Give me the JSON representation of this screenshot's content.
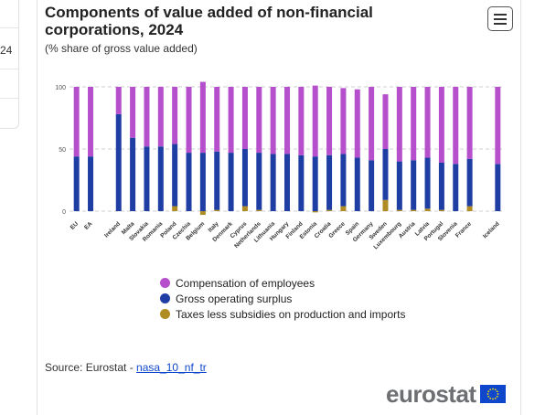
{
  "side_panel": {
    "value": "24"
  },
  "header": {
    "title": "Components of value added of non-financial corporations, 2024",
    "subtitle": "(% share of gross value added)"
  },
  "colors": {
    "compensation": "#b64fcb",
    "surplus": "#1f3ea4",
    "taxes": "#b08d24",
    "grid": "#cfcfcf"
  },
  "legend": {
    "items": [
      {
        "label": "Compensation of employees",
        "color": "#b64fcb"
      },
      {
        "label": "Gross operating surplus",
        "color": "#1f3ea4"
      },
      {
        "label": "Taxes less subsidies on production and imports",
        "color": "#b08d24"
      }
    ]
  },
  "source": {
    "label": "Source: Eurostat - ",
    "dataset": "nasa_10_nf_tr"
  },
  "logo": {
    "text": "eurostat"
  },
  "chart_data": {
    "type": "bar",
    "stacked": true,
    "categories": [
      "EU",
      "EA",
      "",
      "Ireland",
      "Malta",
      "Slovakia",
      "Romania",
      "Poland",
      "Czechia",
      "Belgium",
      "Italy",
      "Denmark",
      "Cyprus",
      "Netherlands",
      "Lithuania",
      "Hungary",
      "Finland",
      "Estonia",
      "Croatia",
      "Greece",
      "Spain",
      "Germany",
      "Sweden",
      "Luxembourg",
      "Austria",
      "Latvia",
      "Portugal",
      "Slovenia",
      "France",
      "",
      "Iceland"
    ],
    "series": [
      {
        "name": "Compensation of employees",
        "values": [
          56,
          56,
          null,
          22,
          41,
          48,
          48,
          46,
          53,
          57,
          52,
          53,
          50,
          53,
          54,
          54,
          55,
          57,
          55,
          53,
          55,
          59,
          44,
          60,
          59,
          57,
          61,
          62,
          58,
          null,
          62
        ]
      },
      {
        "name": "Gross operating surplus",
        "values": [
          44,
          44,
          null,
          78,
          59,
          52,
          52,
          50,
          47,
          47,
          47,
          47,
          46,
          46,
          46,
          46,
          45,
          44,
          44,
          42,
          43,
          41,
          41,
          39,
          40,
          41,
          38,
          38,
          38,
          null,
          38
        ]
      },
      {
        "name": "Taxes less subsidies on production and imports",
        "values": [
          0,
          0,
          null,
          0,
          0,
          0,
          0,
          4,
          0,
          -3,
          1,
          0,
          4,
          1,
          0,
          0,
          0,
          -1,
          1,
          4,
          0,
          0,
          9,
          1,
          1,
          2,
          1,
          0,
          4,
          null,
          0
        ]
      }
    ],
    "y_ticks": [
      "0",
      "50",
      "100"
    ],
    "ylim": [
      -5,
      110
    ],
    "title": "Components of value added of non-financial corporations, 2024",
    "ylabel": "",
    "xlabel": "",
    "grid": true
  }
}
